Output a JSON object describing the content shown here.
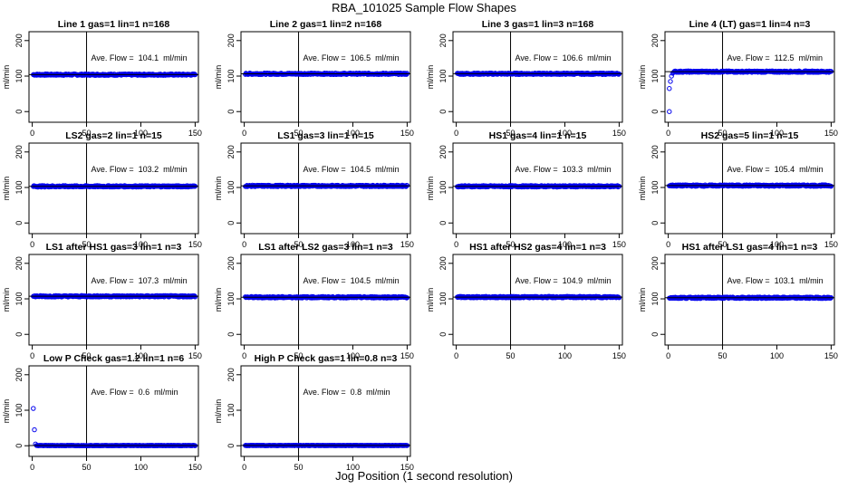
{
  "figure": {
    "title": "RBA_101025  Sample Flow Shapes",
    "xlabel": "Jog Position (1 second resolution)"
  },
  "chart_data": [
    {
      "type": "scatter",
      "title": "Line 1 gas=1 lin=1 n=168",
      "ylabel": "ml/min",
      "annotation": "Ave. Flow =  104.1  ml/min",
      "avg": 104.1,
      "shape": "flat",
      "xlim": [
        0,
        150
      ],
      "ylim": [
        -30,
        225
      ],
      "xticks": [
        0,
        50,
        100,
        150
      ],
      "yticks": [
        0,
        100,
        200
      ],
      "vline": 50
    },
    {
      "type": "scatter",
      "title": "Line 2 gas=1 lin=2 n=168",
      "ylabel": "ml/min",
      "annotation": "Ave. Flow =  106.5  ml/min",
      "avg": 106.5,
      "shape": "flat",
      "xlim": [
        0,
        150
      ],
      "ylim": [
        -30,
        225
      ],
      "xticks": [
        0,
        50,
        100,
        150
      ],
      "yticks": [
        0,
        100,
        200
      ],
      "vline": 50
    },
    {
      "type": "scatter",
      "title": "Line 3 gas=1 lin=3 n=168",
      "ylabel": "ml/min",
      "annotation": "Ave. Flow =  106.6  ml/min",
      "avg": 106.6,
      "shape": "flat",
      "xlim": [
        0,
        150
      ],
      "ylim": [
        -30,
        225
      ],
      "xticks": [
        0,
        50,
        100,
        150
      ],
      "yticks": [
        0,
        100,
        200
      ],
      "vline": 50
    },
    {
      "type": "scatter",
      "title": "Line 4 (LT) gas=1 lin=4 n=3",
      "ylabel": "ml/min",
      "annotation": "Ave. Flow =  112.5  ml/min",
      "avg": 112.5,
      "shape": "ramp",
      "xlim": [
        0,
        150
      ],
      "ylim": [
        -30,
        225
      ],
      "xticks": [
        0,
        50,
        100,
        150
      ],
      "yticks": [
        0,
        100,
        200
      ],
      "vline": 50,
      "initial_points": [
        [
          1,
          0
        ],
        [
          1,
          65
        ],
        [
          2,
          85
        ],
        [
          3,
          100
        ],
        [
          4,
          108
        ]
      ]
    },
    {
      "type": "scatter",
      "title": "LS2 gas=2 lin=1 n=15",
      "ylabel": "ml/min",
      "annotation": "Ave. Flow =  103.2  ml/min",
      "avg": 103.2,
      "shape": "flat",
      "xlim": [
        0,
        150
      ],
      "ylim": [
        -30,
        225
      ],
      "xticks": [
        0,
        50,
        100,
        150
      ],
      "yticks": [
        0,
        100,
        200
      ],
      "vline": 50
    },
    {
      "type": "scatter",
      "title": "LS1 gas=3 lin=1 n=15",
      "ylabel": "ml/min",
      "annotation": "Ave. Flow =  104.5  ml/min",
      "avg": 104.5,
      "shape": "flat",
      "xlim": [
        0,
        150
      ],
      "ylim": [
        -30,
        225
      ],
      "xticks": [
        0,
        50,
        100,
        150
      ],
      "yticks": [
        0,
        100,
        200
      ],
      "vline": 50
    },
    {
      "type": "scatter",
      "title": "HS1 gas=4 lin=1 n=15",
      "ylabel": "ml/min",
      "annotation": "Ave. Flow =  103.3  ml/min",
      "avg": 103.3,
      "shape": "flat",
      "xlim": [
        0,
        150
      ],
      "ylim": [
        -30,
        225
      ],
      "xticks": [
        0,
        50,
        100,
        150
      ],
      "yticks": [
        0,
        100,
        200
      ],
      "vline": 50
    },
    {
      "type": "scatter",
      "title": "HS2 gas=5 lin=1 n=15",
      "ylabel": "ml/min",
      "annotation": "Ave. Flow =  105.4  ml/min",
      "avg": 105.4,
      "shape": "flat",
      "xlim": [
        0,
        150
      ],
      "ylim": [
        -30,
        225
      ],
      "xticks": [
        0,
        50,
        100,
        150
      ],
      "yticks": [
        0,
        100,
        200
      ],
      "vline": 50
    },
    {
      "type": "scatter",
      "title": "LS1 after HS1 gas=3 lin=1 n=3",
      "ylabel": "ml/min",
      "annotation": "Ave. Flow =  107.3  ml/min",
      "avg": 107.3,
      "shape": "flat",
      "xlim": [
        0,
        150
      ],
      "ylim": [
        -30,
        225
      ],
      "xticks": [
        0,
        50,
        100,
        150
      ],
      "yticks": [
        0,
        100,
        200
      ],
      "vline": 50
    },
    {
      "type": "scatter",
      "title": "LS1 after LS2 gas=3 lin=1 n=3",
      "ylabel": "ml/min",
      "annotation": "Ave. Flow =  104.5  ml/min",
      "avg": 104.5,
      "shape": "flat",
      "xlim": [
        0,
        150
      ],
      "ylim": [
        -30,
        225
      ],
      "xticks": [
        0,
        50,
        100,
        150
      ],
      "yticks": [
        0,
        100,
        200
      ],
      "vline": 50
    },
    {
      "type": "scatter",
      "title": "HS1 after HS2 gas=4 lin=1 n=3",
      "ylabel": "ml/min",
      "annotation": "Ave. Flow =  104.9  ml/min",
      "avg": 104.9,
      "shape": "flat",
      "xlim": [
        0,
        150
      ],
      "ylim": [
        -30,
        225
      ],
      "xticks": [
        0,
        50,
        100,
        150
      ],
      "yticks": [
        0,
        100,
        200
      ],
      "vline": 50
    },
    {
      "type": "scatter",
      "title": "HS1 after LS1 gas=4 lin=1 n=3",
      "ylabel": "ml/min",
      "annotation": "Ave. Flow =  103.1  ml/min",
      "avg": 103.1,
      "shape": "flat",
      "xlim": [
        0,
        150
      ],
      "ylim": [
        -30,
        225
      ],
      "xticks": [
        0,
        50,
        100,
        150
      ],
      "yticks": [
        0,
        100,
        200
      ],
      "vline": 50
    },
    {
      "type": "scatter",
      "title": "Low P Check gas=1.2 lin=1 n=6",
      "ylabel": "ml/min",
      "annotation": "Ave. Flow =  0.6  ml/min",
      "avg": 0.6,
      "shape": "zero",
      "xlim": [
        0,
        150
      ],
      "ylim": [
        -30,
        225
      ],
      "xticks": [
        0,
        50,
        100,
        150
      ],
      "yticks": [
        0,
        100,
        200
      ],
      "vline": 50,
      "initial_points": [
        [
          1,
          105
        ],
        [
          2,
          45
        ],
        [
          3,
          5
        ]
      ]
    },
    {
      "type": "scatter",
      "title": "High P Check gas=1 lin=0.8 n=3",
      "ylabel": "ml/min",
      "annotation": "Ave. Flow =  0.8  ml/min",
      "avg": 0.8,
      "shape": "zero",
      "xlim": [
        0,
        150
      ],
      "ylim": [
        -30,
        225
      ],
      "xticks": [
        0,
        50,
        100,
        150
      ],
      "yticks": [
        0,
        100,
        200
      ],
      "vline": 50
    }
  ],
  "colors": {
    "points": "#0000ee",
    "axes": "#000000",
    "background": "#ffffff"
  }
}
